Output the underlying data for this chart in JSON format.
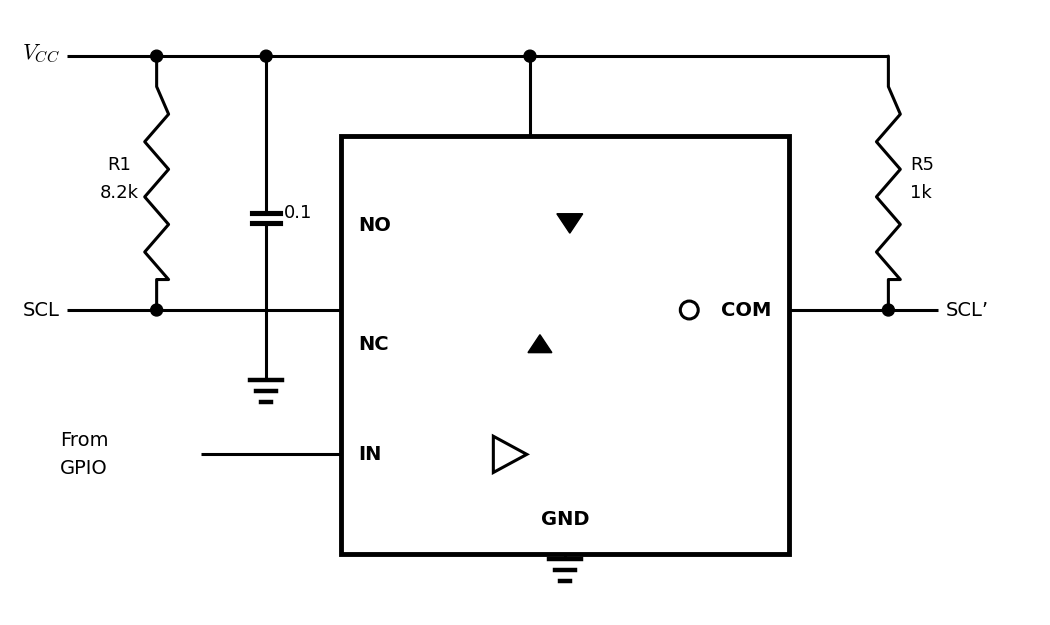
{
  "bg_color": "#ffffff",
  "line_color": "#000000",
  "lw": 2.2,
  "tlw": 3.5,
  "fig_width": 10.5,
  "fig_height": 6.25,
  "labels": {
    "vcc": "$V_{CC}$",
    "scl_in": "SCL",
    "scl_out": "SCL’",
    "r1": "R1",
    "r1_val": "8.2k",
    "cap_val": "0.1",
    "r5": "R5",
    "r5_val": "1k",
    "no": "NO",
    "nc": "NC",
    "in_label": "IN",
    "gnd_label": "GND",
    "com": "COM",
    "from_line1": "From",
    "from_line2": "GPIO"
  }
}
